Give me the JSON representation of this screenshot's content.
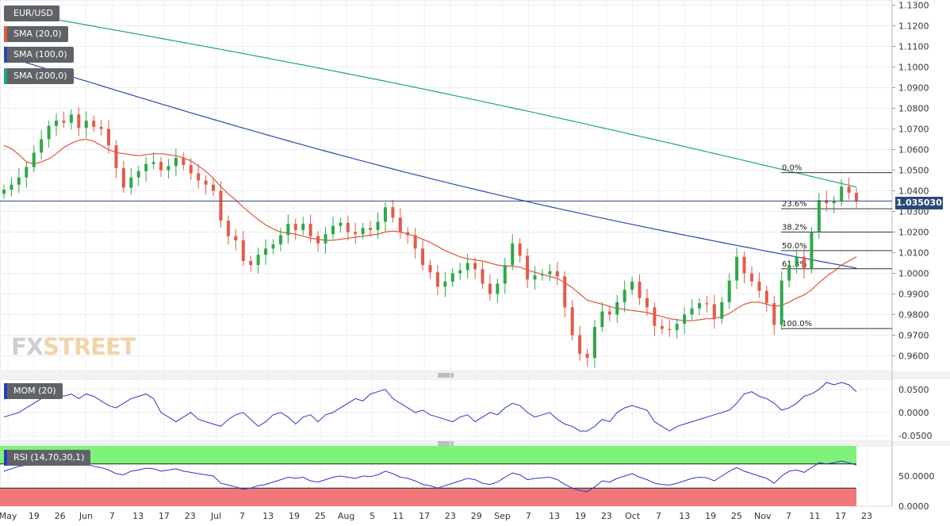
{
  "chart_data": [
    {
      "type": "candlestick",
      "symbol": "EUR/USD",
      "ylim": [
        0.9525,
        1.1325
      ],
      "y_ticks": [
        "1.1300",
        "1.1200",
        "1.1100",
        "1.1000",
        "1.0900",
        "1.0800",
        "1.0700",
        "1.0600",
        "1.0500",
        "1.0400",
        "1.0300",
        "1.0200",
        "1.0100",
        "1.0000",
        "0.9900",
        "0.9800",
        "0.9700",
        "0.9600"
      ],
      "x_ticks": [
        "May",
        "19",
        "26",
        "Jun",
        "7",
        "13",
        "17",
        "23",
        "Jul",
        "7",
        "13",
        "19",
        "25",
        "Aug",
        "5",
        "11",
        "17",
        "23",
        "29",
        "Sep",
        "7",
        "13",
        "19",
        "23",
        "Oct",
        "7",
        "13",
        "19",
        "25",
        "Nov",
        "7",
        "11",
        "17",
        "23"
      ],
      "last_price": "1.035030",
      "indicators": [
        "SMA (20,0)",
        "SMA (100,0)",
        "SMA (200,0)"
      ],
      "sma200": {
        "from": 1.1275,
        "to": 1.0418
      },
      "sma100": {
        "from": 1.1055,
        "to": 1.0025
      },
      "fibonacci": [
        {
          "label": "0.0%",
          "value": 1.0488
        },
        {
          "label": "23.6%",
          "value": 1.0313
        },
        {
          "label": "38.2%",
          "value": 1.02
        },
        {
          "label": "50.0%",
          "value": 1.011
        },
        {
          "label": "61.8%",
          "value": 1.0022
        },
        {
          "label": "100.0%",
          "value": 0.9732
        }
      ],
      "closes": [
        1.0405,
        1.043,
        1.0465,
        1.0515,
        1.0585,
        1.065,
        1.0715,
        1.074,
        1.073,
        1.077,
        1.0705,
        1.074,
        1.071,
        1.07,
        1.062,
        1.051,
        1.0415,
        1.0465,
        1.0495,
        1.053,
        1.054,
        1.05,
        1.052,
        1.056,
        1.0525,
        1.0485,
        1.045,
        1.043,
        1.04,
        1.0255,
        1.018,
        1.016,
        1.006,
        1.004,
        1.009,
        1.012,
        1.014,
        1.0185,
        1.024,
        1.021,
        1.024,
        1.018,
        1.0145,
        1.019,
        1.023,
        1.0245,
        1.02,
        1.019,
        1.022,
        1.021,
        1.025,
        1.032,
        1.027,
        1.02,
        1.0185,
        1.012,
        1.004,
        1.0005,
        0.9935,
        0.996,
        1.0,
        1.0015,
        1.005,
        1.002,
        0.995,
        0.99,
        0.995,
        1.004,
        1.0145,
        1.0085,
        0.997,
        0.999,
        0.9995,
        1.001,
        0.9985,
        0.9835,
        0.97,
        0.961,
        0.959,
        0.974,
        0.9815,
        0.98,
        0.986,
        0.992,
        0.996,
        0.988,
        0.9835,
        0.9745,
        0.973,
        0.9725,
        0.9755,
        0.98,
        0.983,
        0.9855,
        0.985,
        0.978,
        0.986,
        0.9965,
        1.008,
        1.0,
        0.996,
        0.9915,
        0.9855,
        0.975,
        0.9965,
        1.004,
        1.008,
        1.0025,
        1.02,
        1.0355,
        1.034,
        1.035,
        1.042,
        1.039,
        1.035
      ],
      "sma20": [
        1.062,
        1.0605,
        1.0575,
        1.054,
        1.053,
        1.054,
        1.0555,
        1.058,
        1.061,
        1.063,
        1.0645,
        1.065,
        1.064,
        1.062,
        1.06,
        1.0585,
        1.058,
        1.0575,
        1.057,
        1.0575,
        1.058,
        1.058,
        1.0575,
        1.057,
        1.056,
        1.0545,
        1.052,
        1.0495,
        1.046,
        1.042,
        1.0385,
        1.0355,
        1.032,
        1.029,
        1.026,
        1.0235,
        1.0215,
        1.02,
        1.0195,
        1.019,
        1.018,
        1.017,
        1.0165,
        1.016,
        1.016,
        1.0165,
        1.017,
        1.0175,
        1.018,
        1.0185,
        1.019,
        1.02,
        1.0205,
        1.02,
        1.019,
        1.018,
        1.0165,
        1.015,
        1.013,
        1.011,
        1.0095,
        1.008,
        1.007,
        1.0065,
        1.006,
        1.005,
        1.004,
        1.0035,
        1.0035,
        1.003,
        1.0015,
        1.0005,
        0.9995,
        0.9985,
        0.9975,
        0.9955,
        0.993,
        0.99,
        0.987,
        0.986,
        0.985,
        0.984,
        0.983,
        0.9825,
        0.982,
        0.9815,
        0.981,
        0.98,
        0.979,
        0.978,
        0.9775,
        0.977,
        0.977,
        0.9775,
        0.978,
        0.978,
        0.979,
        0.9805,
        0.983,
        0.985,
        0.986,
        0.986,
        0.985,
        0.984,
        0.9845,
        0.986,
        0.988,
        0.9895,
        0.992,
        0.9955,
        0.9985,
        1.001,
        1.004,
        1.006,
        1.008
      ]
    },
    {
      "type": "line",
      "name": "MOM (20)",
      "ylim": [
        -0.062,
        0.072
      ],
      "y_ticks": [
        "0.0500",
        "0.0000",
        "-0.0500"
      ],
      "values": [
        -0.01,
        -0.005,
        0.0,
        0.01,
        0.02,
        0.03,
        0.04,
        0.045,
        0.035,
        0.04,
        0.03,
        0.04,
        0.035,
        0.025,
        0.015,
        0.01,
        0.02,
        0.03,
        0.035,
        0.04,
        0.03,
        0.0,
        -0.01,
        -0.02,
        -0.01,
        0.0,
        -0.015,
        -0.02,
        -0.025,
        -0.03,
        -0.015,
        -0.005,
        0.0,
        -0.015,
        -0.03,
        -0.02,
        -0.005,
        0.0,
        -0.01,
        -0.025,
        -0.01,
        -0.005,
        -0.02,
        -0.005,
        0.0,
        0.01,
        0.02,
        0.03,
        0.025,
        0.04,
        0.045,
        0.05,
        0.03,
        0.02,
        0.01,
        0.0,
        0.005,
        -0.005,
        -0.01,
        -0.015,
        -0.02,
        -0.01,
        -0.005,
        -0.02,
        -0.01,
        0.0,
        -0.005,
        0.01,
        0.02,
        0.015,
        0.0,
        -0.01,
        -0.005,
        0.0,
        -0.015,
        -0.025,
        -0.03,
        -0.04,
        -0.04,
        -0.03,
        -0.015,
        -0.02,
        0.0,
        0.01,
        0.015,
        0.01,
        0.005,
        -0.02,
        -0.03,
        -0.04,
        -0.03,
        -0.025,
        -0.02,
        -0.015,
        -0.01,
        -0.005,
        0.0,
        0.005,
        0.02,
        0.04,
        0.045,
        0.035,
        0.03,
        0.02,
        0.005,
        0.01,
        0.02,
        0.035,
        0.04,
        0.05,
        0.065,
        0.06,
        0.065,
        0.06,
        0.045
      ]
    },
    {
      "type": "line",
      "name": "RSI (14,70,30,1)",
      "ylim": [
        0,
        100
      ],
      "y_ticks": [
        "50.0000",
        "0.0000"
      ],
      "bands": {
        "upper": 70,
        "lower": 30
      },
      "values": [
        58,
        62,
        66,
        68,
        70,
        72,
        73,
        74,
        72,
        73,
        68,
        70,
        66,
        64,
        60,
        54,
        52,
        58,
        60,
        63,
        62,
        58,
        60,
        62,
        58,
        56,
        54,
        52,
        50,
        38,
        35,
        32,
        28,
        30,
        34,
        36,
        40,
        44,
        48,
        46,
        48,
        42,
        40,
        44,
        48,
        50,
        48,
        46,
        50,
        49,
        52,
        58,
        54,
        48,
        46,
        42,
        36,
        34,
        30,
        34,
        38,
        42,
        46,
        44,
        38,
        36,
        40,
        48,
        55,
        52,
        44,
        46,
        47,
        48,
        44,
        36,
        30,
        26,
        24,
        32,
        42,
        40,
        46,
        50,
        54,
        48,
        44,
        38,
        36,
        35,
        38,
        42,
        46,
        48,
        47,
        42,
        50,
        58,
        64,
        58,
        54,
        50,
        46,
        38,
        50,
        58,
        60,
        56,
        64,
        72,
        70,
        72,
        75,
        72,
        68
      ]
    }
  ],
  "sub_labels": {
    "mom": "MOM (20)",
    "rsi": "RSI (14,70,30,1)"
  },
  "colors": {
    "up": "#2ea84a",
    "down": "#e35b4a",
    "sma20": "#e5533d",
    "sma100": "#2a49b0",
    "sma200": "#1fa38a",
    "mom": "#2b38c9",
    "rsi": "#2b38c9",
    "rsi_upper": "#7ff27a",
    "rsi_lower": "#f07878",
    "label_bg": "#5f6368"
  },
  "watermark": {
    "fx": "FX",
    "street": "STREET"
  }
}
